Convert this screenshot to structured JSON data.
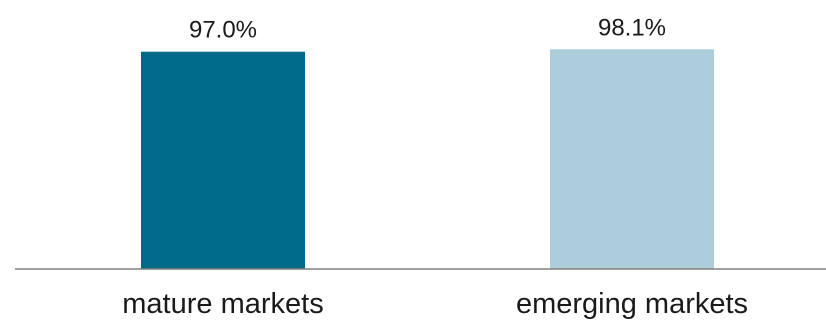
{
  "chart_data": {
    "type": "bar",
    "categories": [
      "mature markets",
      "emerging markets"
    ],
    "values": [
      97.0,
      98.1
    ],
    "data_labels": [
      "97.0%",
      "98.1%"
    ],
    "colors": [
      "#006a8a",
      "#adcdda"
    ],
    "axis_color": "#808080",
    "title": "",
    "xlabel": "",
    "ylabel": "",
    "ylim": [
      0,
      100
    ],
    "grid": false,
    "legend": "none"
  }
}
